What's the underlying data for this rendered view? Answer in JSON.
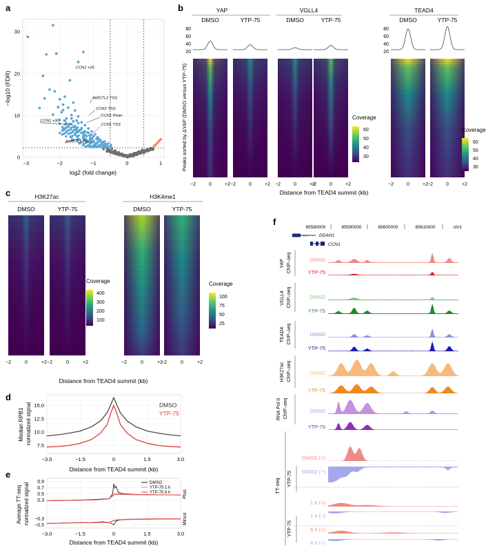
{
  "panels": {
    "a": {
      "letter": "a"
    },
    "b": {
      "letter": "b"
    },
    "c": {
      "letter": "c"
    },
    "d": {
      "letter": "d"
    },
    "e": {
      "letter": "e"
    },
    "f": {
      "letter": "f"
    }
  },
  "colors": {
    "blue_pts": "#5aa7d6",
    "grey_pts": "#6e6e6e",
    "orange_pts": "#f0855e",
    "dmso_line": "#4a4a4a",
    "ytp_line": "#e03a35",
    "yap_dmso": "#f08a84",
    "yap_ytp": "#d81f26",
    "vgll4_dmso": "#7fc37f",
    "vgll4_ytp": "#1f8a2c",
    "tead4_dmso": "#8f8fe6",
    "tead4_ytp": "#1a1ab8",
    "h3k27ac_dmso": "#f7b97c",
    "h3k27ac_ytp": "#f08a1e",
    "pol2_dmso": "#c490e0",
    "pol2_ytp": "#8f2db8",
    "tt_plus": "#f08a84",
    "tt_minus": "#a7a7ec"
  },
  "chart_data": [
    {
      "id": "a",
      "type": "scatter",
      "title": "",
      "xlabel": "log2 (fold change)",
      "ylabel": "−log10 (FDR)",
      "xlim": [
        -3.1,
        1.1
      ],
      "ylim": [
        0,
        33
      ],
      "xticks": [
        "−3",
        "−2",
        "−1",
        "0",
        "1"
      ],
      "xtick_values": [
        -3,
        -2,
        -1,
        0,
        1
      ],
      "yticks": [
        "0",
        "10",
        "20",
        "30"
      ],
      "ytick_values": [
        0,
        10,
        20,
        30
      ],
      "thresholds": {
        "vertical": [
          -0.5,
          0.5
        ],
        "horizontal": 2.3
      },
      "annotations": [
        "CCN1 +25",
        "AMOTL2 TSS",
        "CCN2 TSS",
        "CCN1 Prom",
        "CCN1 +30",
        "CCN1 TSS",
        "AMOTL2 Prom"
      ],
      "series": [
        {
          "name": "down",
          "color": "blue",
          "points": [
            [
              -2.95,
              28.8
            ],
            [
              -2.2,
              31.6
            ],
            [
              -2.4,
              24.6
            ],
            [
              -2.1,
              24.8
            ],
            [
              -1.3,
              25.2
            ],
            [
              -2.3,
              16.2
            ],
            [
              -2.15,
              15.8
            ],
            [
              -1.45,
              22.8
            ],
            [
              -2.5,
              19.5
            ],
            [
              -1.7,
              18.4
            ],
            [
              -1.85,
              14.5
            ],
            [
              -2.0,
              13.9
            ],
            [
              -1.6,
              13.1
            ],
            [
              -1.9,
              12.6
            ],
            [
              -1.75,
              11.9
            ],
            [
              -1.55,
              11.2
            ],
            [
              -1.95,
              10.8
            ],
            [
              -1.65,
              10.1
            ],
            [
              -1.45,
              9.8
            ],
            [
              -1.8,
              9.3
            ],
            [
              -1.5,
              8.8
            ],
            [
              -1.35,
              8.4
            ],
            [
              -1.7,
              8.0
            ],
            [
              -1.25,
              7.7
            ],
            [
              -1.55,
              7.2
            ],
            [
              -1.15,
              6.9
            ],
            [
              -1.4,
              6.5
            ],
            [
              -1.05,
              6.2
            ],
            [
              -1.3,
              5.8
            ],
            [
              -0.95,
              5.5
            ],
            [
              -1.2,
              5.1
            ],
            [
              -0.88,
              4.8
            ],
            [
              -1.1,
              4.5
            ],
            [
              -0.8,
              4.2
            ],
            [
              -1.0,
              3.9
            ],
            [
              -0.72,
              3.7
            ],
            [
              -0.9,
              3.4
            ],
            [
              -0.65,
              3.2
            ],
            [
              -0.8,
              2.9
            ],
            [
              -0.6,
              2.7
            ],
            [
              -2.05,
              12.0
            ],
            [
              -1.9,
              11.3
            ],
            [
              -2.2,
              10.2
            ],
            [
              -1.65,
              9.3
            ],
            [
              -1.35,
              7.0
            ],
            [
              -1.25,
              6.1
            ],
            [
              -1.5,
              6.4
            ],
            [
              -1.0,
              5.0
            ],
            [
              -0.75,
              3.4
            ],
            [
              -0.85,
              3.9
            ],
            [
              -1.15,
              5.9
            ],
            [
              -1.75,
              7.4
            ],
            [
              -1.6,
              8.6
            ],
            [
              -1.45,
              8.2
            ],
            [
              -1.3,
              4.6
            ],
            [
              -0.7,
              2.9
            ],
            [
              -0.62,
              2.5
            ],
            [
              -2.45,
              14.1
            ],
            [
              -2.6,
              11.8
            ],
            [
              -1.9,
              6.8
            ],
            [
              -1.55,
              5.4
            ],
            [
              -1.2,
              4.0
            ],
            [
              -0.95,
              3.2
            ]
          ]
        },
        {
          "name": "ns",
          "color": "grey",
          "points": [
            [
              -0.45,
              2.1
            ],
            [
              -0.35,
              1.6
            ],
            [
              -0.25,
              1.2
            ],
            [
              -0.15,
              0.8
            ],
            [
              -0.05,
              0.4
            ],
            [
              0.05,
              0.4
            ],
            [
              0.15,
              0.7
            ],
            [
              0.25,
              1.0
            ],
            [
              0.35,
              1.4
            ],
            [
              0.45,
              1.8
            ],
            [
              -0.55,
              1.9
            ],
            [
              -0.4,
              1.0
            ],
            [
              -0.2,
              0.5
            ],
            [
              0.1,
              0.2
            ],
            [
              0.3,
              0.6
            ],
            [
              0.55,
              1.4
            ],
            [
              0.65,
              1.8
            ],
            [
              0.75,
              2.0
            ],
            [
              -0.6,
              2.2
            ],
            [
              -0.5,
              1.3
            ],
            [
              0.0,
              0.1
            ],
            [
              0.2,
              0.3
            ],
            [
              0.4,
              0.9
            ],
            [
              0.6,
              1.6
            ],
            [
              -0.3,
              0.7
            ],
            [
              -0.1,
              0.3
            ],
            [
              0.7,
              2.2
            ],
            [
              0.5,
              1.1
            ],
            [
              -0.7,
              2.0
            ]
          ]
        },
        {
          "name": "up",
          "color": "orange",
          "points": [
            [
              0.85,
              3.0
            ],
            [
              0.9,
              3.4
            ],
            [
              0.95,
              3.9
            ],
            [
              1.0,
              4.3
            ],
            [
              0.8,
              2.7
            ]
          ]
        }
      ]
    },
    {
      "id": "b",
      "type": "heatmap",
      "groups": [
        "YAP",
        "VGLL4",
        "TEAD4"
      ],
      "conditions": [
        "DMSO",
        "YTP-75"
      ],
      "profile_yticks": [
        "80",
        "60",
        "40",
        "20"
      ],
      "ylabel": "Peaks sorted by ΔYAP (DMSO versus YTP-75)",
      "xlabel": "Distance from TEAD4 summit (kb)",
      "xticks": [
        "−2",
        "0",
        "+2"
      ],
      "legend1": {
        "title": "Coverage",
        "ticks": [
          "60",
          "50",
          "40",
          "30"
        ],
        "range": [
          25,
          65
        ]
      },
      "legend2": {
        "title": "Coverage",
        "ticks": [
          "60",
          "50",
          "40",
          "30"
        ],
        "range": [
          25,
          70
        ]
      }
    },
    {
      "id": "c",
      "type": "heatmap",
      "groups": [
        "H3K27ac",
        "H3K4me1"
      ],
      "conditions": [
        "DMSO",
        "YTP-75"
      ],
      "xlabel": "Distance from TEAD4 summit (kb)",
      "xticks": [
        "−2",
        "0",
        "+2"
      ],
      "legend1": {
        "title": "Coverage",
        "ticks": [
          "400",
          "300",
          "200",
          "100"
        ],
        "range": [
          40,
          440
        ]
      },
      "legend2": {
        "title": "Coverage",
        "ticks": [
          "100",
          "75",
          "50",
          "25"
        ],
        "range": [
          10,
          125
        ]
      }
    },
    {
      "id": "d",
      "type": "line",
      "xlabel": "Distance from TEAD4 summit (kb)",
      "ylabel": "Median RPB1 normalized signal",
      "xlim": [
        -3.0,
        3.0
      ],
      "ylim": [
        6.0,
        17.0
      ],
      "xticks": [
        "−3.0",
        "−1.5",
        "0",
        "1.5",
        "3.0"
      ],
      "xtick_values": [
        -3.0,
        -1.5,
        0,
        1.5,
        3.0
      ],
      "yticks": [
        "15.0",
        "12.5",
        "10.0",
        "7.5"
      ],
      "ytick_values": [
        15.0,
        12.5,
        10.0,
        7.5
      ],
      "legend": [
        "DMSO",
        "YTP-75"
      ],
      "series": [
        {
          "name": "DMSO",
          "x": [
            -3.0,
            -2.5,
            -2.0,
            -1.5,
            -1.0,
            -0.6,
            -0.3,
            -0.15,
            0,
            0.15,
            0.3,
            0.6,
            1.0,
            1.5,
            2.0,
            2.5,
            3.0
          ],
          "values": [
            9.3,
            9.5,
            9.8,
            10.2,
            11.0,
            12.1,
            13.6,
            15.0,
            16.5,
            15.0,
            13.6,
            12.1,
            11.0,
            10.2,
            9.8,
            9.5,
            9.3
          ]
        },
        {
          "name": "YTP-75",
          "x": [
            -3.0,
            -2.5,
            -2.0,
            -1.5,
            -1.0,
            -0.6,
            -0.3,
            -0.15,
            0,
            0.15,
            0.3,
            0.6,
            1.0,
            1.5,
            2.0,
            2.5,
            3.0
          ],
          "values": [
            7.2,
            7.3,
            7.5,
            7.9,
            8.6,
            9.8,
            11.4,
            13.4,
            15.0,
            13.4,
            11.4,
            9.8,
            8.6,
            7.9,
            7.5,
            7.3,
            7.2
          ]
        }
      ]
    },
    {
      "id": "e",
      "type": "line",
      "xlabel": "Distance from TEAD4 summit (kb)",
      "ylabel": "Average TT-seq normalized signal",
      "xlim": [
        -3.0,
        3.0
      ],
      "ylim": [
        -0.6,
        1.0
      ],
      "xticks": [
        "−3.0",
        "−1.5",
        "0",
        "1.5",
        "3.0"
      ],
      "xtick_values": [
        -3.0,
        -1.5,
        0,
        1.5,
        3.0
      ],
      "yticks": [
        "0.9",
        "0.7",
        "0.5",
        "0.3",
        "−0.3",
        "−0.5"
      ],
      "ytick_values": [
        0.9,
        0.7,
        0.5,
        0.3,
        -0.3,
        -0.5
      ],
      "strand_labels": [
        "Plus",
        "Minus"
      ],
      "legend": [
        "DMSO",
        "YTP-75 1 h",
        "YTP-75 6 h"
      ],
      "series": [
        {
          "name": "DMSO plus",
          "x": [
            -3,
            -2,
            -1,
            -0.5,
            -0.2,
            -0.05,
            0,
            0.05,
            0.1,
            0.2,
            0.3,
            0.5,
            1,
            2,
            3
          ],
          "values": [
            0.28,
            0.29,
            0.31,
            0.33,
            0.35,
            0.5,
            0.82,
            0.68,
            0.75,
            0.55,
            0.52,
            0.5,
            0.48,
            0.47,
            0.47
          ]
        },
        {
          "name": "YTP-75 1 h plus",
          "x": [
            -3,
            -2,
            -1,
            -0.5,
            -0.2,
            0,
            0.1,
            0.3,
            0.5,
            1,
            2,
            3
          ],
          "values": [
            0.28,
            0.29,
            0.3,
            0.32,
            0.35,
            0.5,
            0.52,
            0.5,
            0.49,
            0.48,
            0.47,
            0.47
          ]
        },
        {
          "name": "YTP-75 6 h plus",
          "x": [
            -3,
            -2,
            -1,
            -0.5,
            -0.2,
            0,
            0.1,
            0.3,
            0.5,
            1,
            2,
            3
          ],
          "values": [
            0.28,
            0.29,
            0.3,
            0.32,
            0.34,
            0.46,
            0.48,
            0.48,
            0.48,
            0.47,
            0.47,
            0.46
          ]
        },
        {
          "name": "DMSO minus",
          "x": [
            -3,
            -2,
            -1,
            -0.5,
            -0.2,
            0,
            0.1,
            0.2,
            0.4,
            1,
            2,
            3
          ],
          "values": [
            -0.45,
            -0.43,
            -0.42,
            -0.4,
            -0.42,
            -0.5,
            -0.38,
            -0.35,
            -0.33,
            -0.32,
            -0.31,
            -0.3
          ]
        },
        {
          "name": "YTP-75 1 h minus",
          "x": [
            -3,
            -2,
            -1,
            -0.5,
            -0.2,
            0,
            0.2,
            0.5,
            1,
            2,
            3
          ],
          "values": [
            -0.45,
            -0.43,
            -0.42,
            -0.41,
            -0.42,
            -0.35,
            -0.33,
            -0.32,
            -0.31,
            -0.3,
            -0.3
          ]
        },
        {
          "name": "YTP-75 6 h minus",
          "x": [
            -3,
            -2,
            -1,
            -0.5,
            -0.2,
            0,
            0.2,
            0.5,
            1,
            2,
            3
          ],
          "values": [
            -0.46,
            -0.44,
            -0.43,
            -0.42,
            -0.43,
            -0.36,
            -0.34,
            -0.33,
            -0.32,
            -0.31,
            -0.31
          ]
        }
      ]
    },
    {
      "id": "f",
      "type": "area",
      "coordinates": [
        "85580000",
        "85590000",
        "85600000",
        "85610000"
      ],
      "chromosome": "chr1",
      "genes": [
        "DDAH1",
        "CCN1"
      ],
      "assay_groups": [
        "YAP ChIP–seq",
        "VGLL4 ChIP–seq",
        "TEAD4 ChIP–seq",
        "H3K27ac ChIP–seq",
        "RNA Pol II ChIP–seq",
        "TT-seq",
        "YTP-75",
        "YTP-75"
      ],
      "track_labels": [
        "DMSO",
        "YTP-75",
        "DMSO",
        "YTP-75",
        "DMSO",
        "YTP-75",
        "DMSO",
        "YTP-75",
        "DMSO",
        "YTP-75",
        "DMSO (+)",
        "DMSO (−)",
        "1 h (+)",
        "1 h (−)",
        "6 h (+)",
        "6 h (−)"
      ]
    }
  ]
}
